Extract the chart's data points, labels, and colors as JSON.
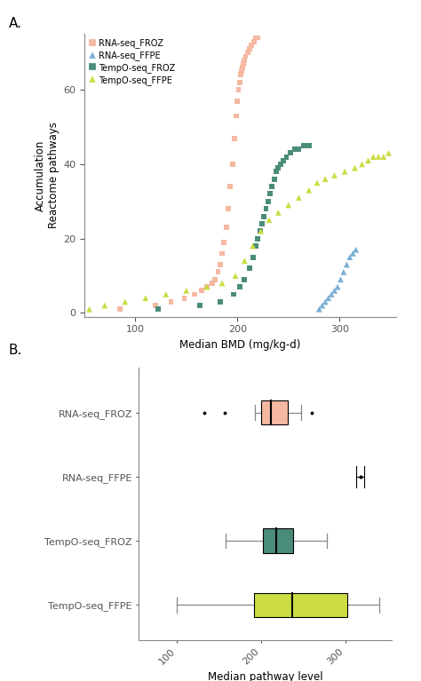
{
  "panel_A": {
    "xlabel": "Median BMD (mg/kg-d)",
    "ylabel": "Accumulation\nReactome pathways",
    "xlim": [
      50,
      355
    ],
    "ylim": [
      -1,
      75
    ],
    "xticks": [
      100,
      200,
      300
    ],
    "yticks": [
      0,
      20,
      40,
      60
    ],
    "series": {
      "RNA-seq_FROZ": {
        "color": "#F5B8A0",
        "marker": "s",
        "x": [
          85,
          120,
          135,
          148,
          158,
          165,
          170,
          175,
          178,
          181,
          183,
          185,
          187,
          189,
          191,
          193,
          195,
          197,
          199,
          200,
          201,
          202,
          203,
          204,
          205,
          206,
          207,
          208,
          210,
          212,
          214,
          216,
          218,
          220
        ],
        "y": [
          1,
          2,
          3,
          4,
          5,
          6,
          7,
          8,
          9,
          11,
          13,
          16,
          19,
          23,
          28,
          34,
          40,
          47,
          53,
          57,
          60,
          62,
          64,
          65,
          66,
          67,
          68,
          69,
          70,
          71,
          72,
          73,
          74,
          74
        ]
      },
      "RNA-seq_FFPE": {
        "color": "#7BAFD4",
        "marker": "^",
        "x": [
          280,
          283,
          286,
          289,
          292,
          295,
          298,
          301,
          304,
          307,
          310,
          313,
          316
        ],
        "y": [
          1,
          2,
          3,
          4,
          5,
          6,
          7,
          9,
          11,
          13,
          15,
          16,
          17
        ]
      },
      "TempO-seq_FROZ": {
        "color": "#4A8C7A",
        "marker": "s",
        "x": [
          122,
          163,
          183,
          196,
          202,
          207,
          212,
          215,
          218,
          220,
          222,
          224,
          226,
          228,
          230,
          232,
          234,
          236,
          238,
          240,
          242,
          245,
          248,
          252,
          256,
          260,
          265,
          270
        ],
        "y": [
          1,
          2,
          3,
          5,
          7,
          9,
          12,
          15,
          18,
          20,
          22,
          24,
          26,
          28,
          30,
          32,
          34,
          36,
          38,
          39,
          40,
          41,
          42,
          43,
          44,
          44,
          45,
          45
        ]
      },
      "TempO-seq_FFPE": {
        "color": "#CCDD44",
        "marker": "^",
        "x": [
          55,
          70,
          90,
          110,
          130,
          150,
          170,
          185,
          198,
          207,
          215,
          223,
          231,
          240,
          250,
          260,
          270,
          278,
          286,
          295,
          305,
          315,
          322,
          328,
          333,
          338,
          343,
          348
        ],
        "y": [
          1,
          2,
          3,
          4,
          5,
          6,
          7,
          8,
          10,
          14,
          18,
          22,
          25,
          27,
          29,
          31,
          33,
          35,
          36,
          37,
          38,
          39,
          40,
          41,
          42,
          42,
          42,
          43
        ]
      }
    },
    "legend_order": [
      "RNA-seq_FROZ",
      "RNA-seq_FFPE",
      "TempO-seq_FROZ",
      "TempO-seq_FFPE"
    ]
  },
  "panel_B": {
    "xlabel": "Median pathway level\nBMD (mg/kg-d)",
    "categories": [
      "RNA-seq_FROZ",
      "RNA-seq_FFPE",
      "TempO-seq_FROZ",
      "TempO-seq_FFPE"
    ],
    "colors": [
      "#F5B8A0",
      "#888888",
      "#4A8C7A",
      "#CCDD44"
    ],
    "xlim": [
      55,
      355
    ],
    "xticks": [
      100,
      200,
      300
    ],
    "boxplot_data": {
      "RNA-seq_FROZ": {
        "whisker_lo": 193,
        "q1": 200,
        "median": 212,
        "q3": 232,
        "whisker_hi": 248,
        "outliers": [
          133,
          157,
          260
        ]
      },
      "RNA-seq_FFPE": {
        "whisker_lo": 313,
        "q1": 316,
        "median": 318,
        "q3": 320,
        "whisker_hi": 323,
        "outliers": []
      },
      "TempO-seq_FROZ": {
        "whisker_lo": 158,
        "q1": 202,
        "median": 218,
        "q3": 238,
        "whisker_hi": 278,
        "outliers": []
      },
      "TempO-seq_FFPE": {
        "whisker_lo": 100,
        "q1": 192,
        "median": 237,
        "q3": 302,
        "whisker_hi": 340,
        "outliers": []
      }
    }
  }
}
